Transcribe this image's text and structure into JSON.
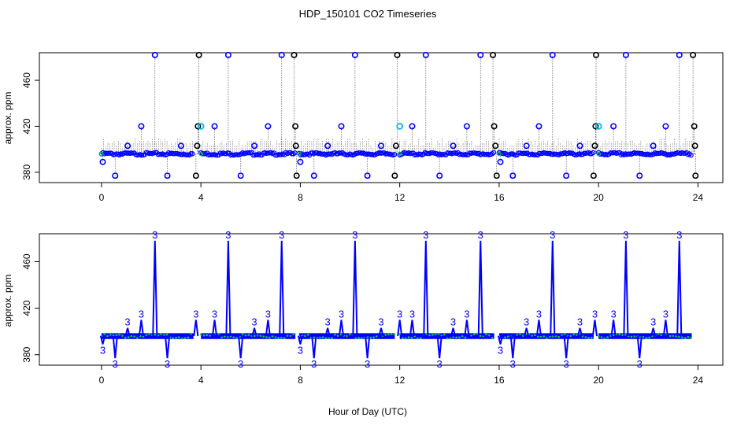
{
  "figure_title": "HDP_150101  CO2 Timeseries",
  "xlabel": "Hour of Day (UTC)",
  "colors": {
    "axis": "#000000",
    "blue": "#0000ff",
    "cyan": "#00b8e6",
    "green": "#00cc44",
    "black": "#000000",
    "dotted": "#000000"
  },
  "chart_data": [
    {
      "type": "scatter",
      "ylabel": "approx. ppm",
      "xlim": [
        -2.5,
        25
      ],
      "ylim": [
        371,
        484
      ],
      "xticks": [
        0,
        4,
        8,
        12,
        16,
        20,
        24
      ],
      "yticks": [
        380,
        420,
        460
      ],
      "baseline": 396,
      "segments": [
        [
          0.0,
          3.7
        ],
        [
          4.0,
          7.8
        ],
        [
          7.95,
          11.8
        ],
        [
          12.0,
          15.8
        ],
        [
          16.0,
          19.8
        ],
        [
          20.0,
          23.75
        ]
      ],
      "blue_markers": [
        {
          "x": 0.05,
          "y": 389
        },
        {
          "x": 0.55,
          "y": 377
        },
        {
          "x": 1.05,
          "y": 403
        },
        {
          "x": 1.6,
          "y": 420
        },
        {
          "x": 2.15,
          "y": 482
        },
        {
          "x": 2.65,
          "y": 377
        },
        {
          "x": 3.2,
          "y": 403
        },
        {
          "x": 4.55,
          "y": 420
        },
        {
          "x": 5.1,
          "y": 482
        },
        {
          "x": 5.6,
          "y": 377
        },
        {
          "x": 6.15,
          "y": 403
        },
        {
          "x": 6.7,
          "y": 420
        },
        {
          "x": 7.25,
          "y": 482
        },
        {
          "x": 8.0,
          "y": 389
        },
        {
          "x": 8.55,
          "y": 377
        },
        {
          "x": 9.1,
          "y": 403
        },
        {
          "x": 9.65,
          "y": 420
        },
        {
          "x": 10.2,
          "y": 482
        },
        {
          "x": 10.7,
          "y": 377
        },
        {
          "x": 11.25,
          "y": 403
        },
        {
          "x": 12.5,
          "y": 420
        },
        {
          "x": 13.05,
          "y": 482
        },
        {
          "x": 13.6,
          "y": 377
        },
        {
          "x": 14.15,
          "y": 403
        },
        {
          "x": 14.7,
          "y": 420
        },
        {
          "x": 15.25,
          "y": 482
        },
        {
          "x": 16.05,
          "y": 389
        },
        {
          "x": 16.55,
          "y": 377
        },
        {
          "x": 17.1,
          "y": 403
        },
        {
          "x": 17.6,
          "y": 420
        },
        {
          "x": 18.15,
          "y": 482
        },
        {
          "x": 18.7,
          "y": 377
        },
        {
          "x": 19.25,
          "y": 403
        },
        {
          "x": 20.6,
          "y": 420
        },
        {
          "x": 21.1,
          "y": 482
        },
        {
          "x": 21.65,
          "y": 377
        },
        {
          "x": 22.2,
          "y": 403
        },
        {
          "x": 22.7,
          "y": 420
        },
        {
          "x": 23.25,
          "y": 482
        }
      ],
      "black_markers": [
        {
          "x": 3.8,
          "y": 377
        },
        {
          "x": 3.85,
          "y": 403
        },
        {
          "x": 3.88,
          "y": 420
        },
        {
          "x": 3.92,
          "y": 482
        },
        {
          "x": 7.75,
          "y": 482
        },
        {
          "x": 7.8,
          "y": 420
        },
        {
          "x": 7.82,
          "y": 403
        },
        {
          "x": 7.85,
          "y": 377
        },
        {
          "x": 11.8,
          "y": 377
        },
        {
          "x": 11.85,
          "y": 403
        },
        {
          "x": 11.9,
          "y": 482
        },
        {
          "x": 15.75,
          "y": 482
        },
        {
          "x": 15.8,
          "y": 420
        },
        {
          "x": 15.85,
          "y": 403
        },
        {
          "x": 15.9,
          "y": 377
        },
        {
          "x": 19.8,
          "y": 377
        },
        {
          "x": 19.85,
          "y": 403
        },
        {
          "x": 19.88,
          "y": 420
        },
        {
          "x": 19.9,
          "y": 482
        },
        {
          "x": 23.8,
          "y": 482
        },
        {
          "x": 23.85,
          "y": 420
        },
        {
          "x": 23.88,
          "y": 403
        },
        {
          "x": 23.9,
          "y": 377
        }
      ],
      "cyan_markers": [
        {
          "x": 4.0,
          "y": 420
        },
        {
          "x": 12.0,
          "y": 420
        },
        {
          "x": 20.0,
          "y": 420
        }
      ]
    },
    {
      "type": "line",
      "ylabel": "approx. ppm",
      "xlim": [
        -2.5,
        25
      ],
      "ylim": [
        371,
        484
      ],
      "xticks": [
        0,
        4,
        8,
        12,
        16,
        20,
        24
      ],
      "yticks": [
        380,
        420,
        460
      ],
      "baseline": 396,
      "marker_label": "3",
      "segments": [
        [
          0.0,
          3.7
        ],
        [
          4.0,
          7.8
        ],
        [
          7.95,
          11.8
        ],
        [
          12.0,
          15.8
        ],
        [
          16.0,
          19.8
        ],
        [
          20.0,
          23.75
        ]
      ],
      "peaks": [
        {
          "x": 0.05,
          "y": 389
        },
        {
          "x": 0.55,
          "y": 377
        },
        {
          "x": 1.05,
          "y": 403
        },
        {
          "x": 1.6,
          "y": 410
        },
        {
          "x": 2.15,
          "y": 478
        },
        {
          "x": 2.65,
          "y": 377
        },
        {
          "x": 3.8,
          "y": 410
        },
        {
          "x": 4.55,
          "y": 410
        },
        {
          "x": 5.1,
          "y": 478
        },
        {
          "x": 5.6,
          "y": 377
        },
        {
          "x": 6.15,
          "y": 403
        },
        {
          "x": 6.7,
          "y": 410
        },
        {
          "x": 7.25,
          "y": 478
        },
        {
          "x": 8.0,
          "y": 389
        },
        {
          "x": 8.55,
          "y": 377
        },
        {
          "x": 9.1,
          "y": 403
        },
        {
          "x": 9.65,
          "y": 410
        },
        {
          "x": 10.2,
          "y": 478
        },
        {
          "x": 10.7,
          "y": 377
        },
        {
          "x": 11.25,
          "y": 403
        },
        {
          "x": 12.0,
          "y": 410
        },
        {
          "x": 12.5,
          "y": 410
        },
        {
          "x": 13.05,
          "y": 478
        },
        {
          "x": 13.6,
          "y": 377
        },
        {
          "x": 14.15,
          "y": 403
        },
        {
          "x": 14.7,
          "y": 410
        },
        {
          "x": 15.25,
          "y": 478
        },
        {
          "x": 16.05,
          "y": 389
        },
        {
          "x": 16.55,
          "y": 377
        },
        {
          "x": 17.1,
          "y": 403
        },
        {
          "x": 17.6,
          "y": 410
        },
        {
          "x": 18.15,
          "y": 478
        },
        {
          "x": 18.7,
          "y": 377
        },
        {
          "x": 19.25,
          "y": 403
        },
        {
          "x": 19.85,
          "y": 410
        },
        {
          "x": 20.6,
          "y": 410
        },
        {
          "x": 21.1,
          "y": 478
        },
        {
          "x": 21.65,
          "y": 377
        },
        {
          "x": 22.2,
          "y": 403
        },
        {
          "x": 22.7,
          "y": 410
        },
        {
          "x": 23.25,
          "y": 478
        }
      ]
    }
  ]
}
